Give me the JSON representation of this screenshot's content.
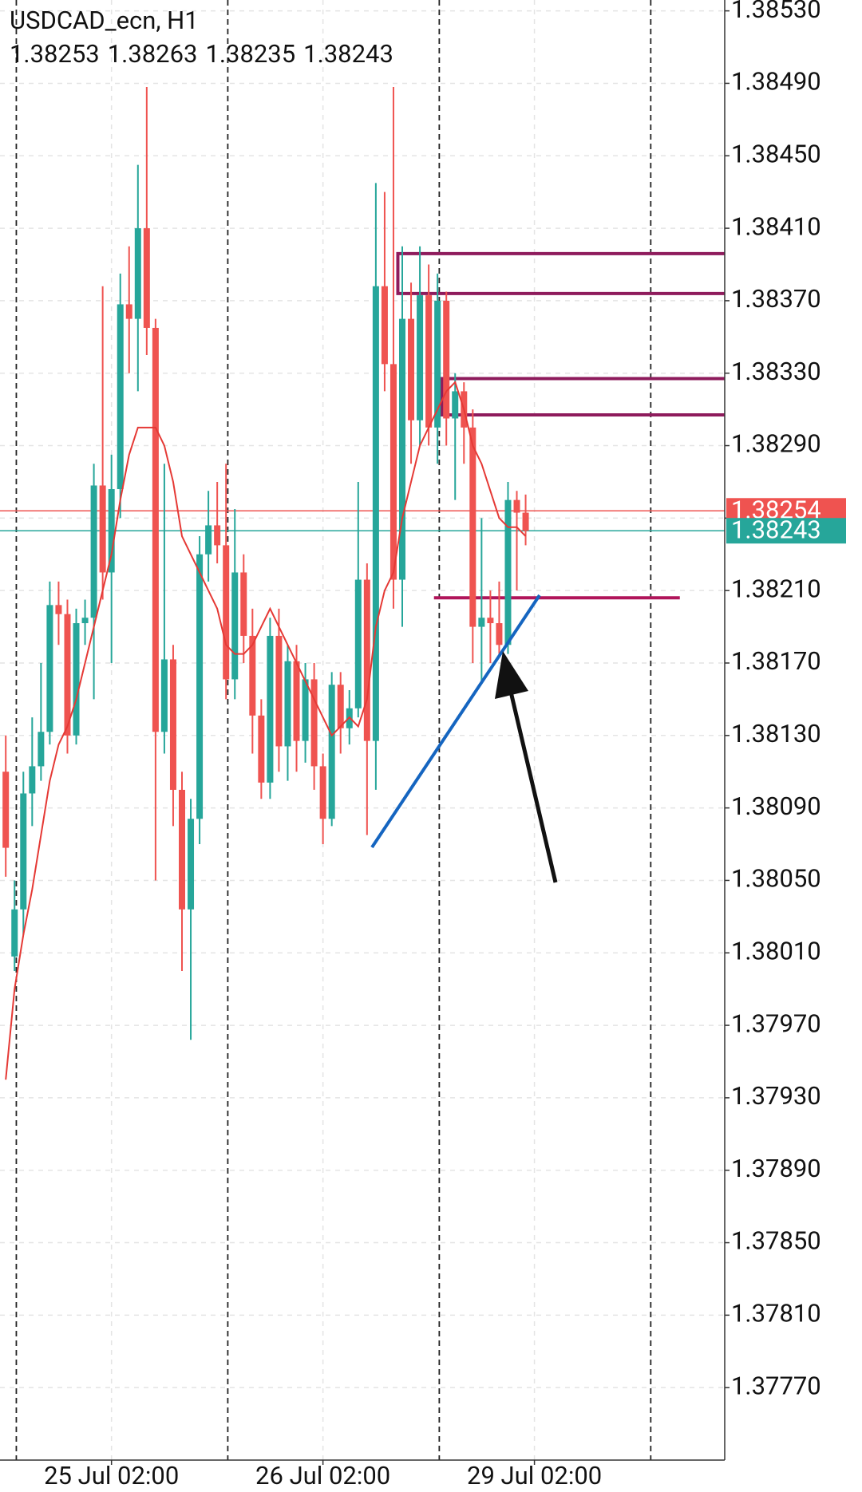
{
  "chart_data": {
    "type": "candlestick",
    "title": "USDCAD_ecn, H1",
    "categories": [
      null,
      null,
      null,
      null,
      null,
      null,
      null,
      null,
      null,
      null,
      null,
      null,
      "25 Jul 02:00",
      null,
      null,
      null,
      null,
      null,
      null,
      null,
      null,
      null,
      null,
      null,
      null,
      null,
      null,
      null,
      null,
      null,
      null,
      null,
      null,
      null,
      null,
      null,
      "26 Jul 02:00",
      null,
      null,
      null,
      null,
      null,
      null,
      null,
      null,
      null,
      null,
      null,
      null,
      null,
      null,
      null,
      null,
      null,
      null,
      null,
      null,
      null,
      null,
      null,
      "29 Jul 02:00"
    ],
    "open": [
      1.3811,
      1.38008,
      1.38034,
      1.38098,
      1.38113,
      1.38132,
      1.38202,
      1.38197,
      1.3813,
      1.38192,
      1.38195,
      1.38268,
      1.3822,
      1.38266,
      1.38368,
      1.3836,
      1.3841,
      1.38355,
      1.38132,
      1.38172,
      1.381,
      1.38034,
      1.38084,
      1.3823,
      1.38246,
      1.38235,
      1.38161,
      1.3822,
      1.38185,
      1.38141,
      1.38104,
      1.38185,
      1.38124,
      1.38171,
      1.38127,
      1.38161,
      1.38113,
      1.38084,
      1.38158,
      1.38134,
      1.38145,
      1.38216,
      1.38127,
      1.38378,
      1.38335,
      1.38216,
      1.3836,
      1.38304,
      1.38373,
      1.383,
      1.3837,
      1.38305,
      1.3832,
      1.383,
      1.3819,
      1.38195,
      1.38192,
      1.3818,
      1.3826,
      1.38253,
      null
    ],
    "high": [
      1.3813,
      1.3805,
      1.3811,
      1.3814,
      1.3817,
      1.38215,
      1.38215,
      1.38205,
      1.382,
      1.38205,
      1.3828,
      1.38378,
      1.38285,
      1.38385,
      1.384,
      1.38445,
      1.38488,
      1.3836,
      1.3828,
      1.3818,
      1.3811,
      1.38095,
      1.3824,
      1.38265,
      1.3827,
      1.3828,
      1.38255,
      1.3823,
      1.382,
      1.3815,
      1.38195,
      1.382,
      1.3818,
      1.3818,
      1.3817,
      1.3817,
      1.3812,
      1.38165,
      1.38165,
      1.38155,
      1.3827,
      1.38225,
      1.38435,
      1.3843,
      1.38488,
      1.384,
      1.3838,
      1.384,
      1.3839,
      1.38385,
      1.38375,
      1.3833,
      1.38325,
      1.3831,
      1.3825,
      1.3821,
      1.38215,
      1.3827,
      1.38265,
      1.38263,
      null
    ],
    "low": [
      1.38052,
      1.38,
      1.3802,
      1.3808,
      1.38105,
      1.38125,
      1.3818,
      1.3812,
      1.38125,
      1.3818,
      1.3815,
      1.38205,
      1.3817,
      1.3825,
      1.3833,
      1.3832,
      1.3834,
      1.3805,
      1.3812,
      1.3808,
      1.38,
      1.37962,
      1.3807,
      1.38215,
      1.38225,
      1.3815,
      1.3815,
      1.3817,
      1.3812,
      1.38095,
      1.38095,
      1.3811,
      1.38105,
      1.3811,
      1.38115,
      1.381,
      1.3807,
      1.3808,
      1.3812,
      1.38125,
      1.3814,
      1.38075,
      1.381,
      1.3832,
      1.382,
      1.3819,
      1.3828,
      1.3829,
      1.3829,
      1.3828,
      1.3829,
      1.3826,
      1.3828,
      1.3817,
      1.3816,
      1.3817,
      1.38175,
      1.38175,
      1.3821,
      1.38235,
      null
    ],
    "close": [
      1.38068,
      1.38034,
      1.38098,
      1.38113,
      1.38132,
      1.38202,
      1.38197,
      1.3813,
      1.38192,
      1.38195,
      1.38268,
      1.3822,
      1.38266,
      1.38368,
      1.3836,
      1.3841,
      1.38355,
      1.38132,
      1.38172,
      1.381,
      1.38034,
      1.38084,
      1.3823,
      1.38246,
      1.38235,
      1.38161,
      1.3822,
      1.38185,
      1.38141,
      1.38104,
      1.38185,
      1.38124,
      1.38171,
      1.38127,
      1.38161,
      1.38113,
      1.38084,
      1.38158,
      1.38134,
      1.38145,
      1.38216,
      1.38127,
      1.38378,
      1.38335,
      1.38216,
      1.3836,
      1.38304,
      1.38373,
      1.383,
      1.3837,
      1.38305,
      1.3832,
      1.383,
      1.3819,
      1.38195,
      1.38192,
      1.3818,
      1.3826,
      1.38253,
      1.38243,
      null
    ],
    "up_color": "#26a69a",
    "down_color": "#ef5350",
    "ma": {
      "color": "#e53935",
      "values": [
        1.3794,
        1.3799,
        1.3802,
        1.38045,
        1.38075,
        1.38105,
        1.38125,
        1.38135,
        1.3815,
        1.3817,
        1.3819,
        1.3821,
        1.3823,
        1.3826,
        1.38285,
        1.383,
        1.383,
        1.383,
        1.3829,
        1.3827,
        1.3824,
        1.3823,
        1.3822,
        1.3821,
        1.382,
        1.3818,
        1.38175,
        1.38175,
        1.3818,
        1.3819,
        1.382,
        1.3819,
        1.3818,
        1.3817,
        1.3816,
        1.3815,
        1.3814,
        1.3813,
        1.38135,
        1.3814,
        1.38135,
        1.3815,
        1.3819,
        1.3821,
        1.3822,
        1.3825,
        1.3827,
        1.3829,
        1.383,
        1.3831,
        1.3832,
        1.38325,
        1.3831,
        1.3829,
        1.3828,
        1.38265,
        1.3825,
        1.38245,
        1.38245,
        1.3824,
        null
      ]
    },
    "price_lines": [
      {
        "value": 1.38254,
        "color": "#ef5350"
      },
      {
        "value": 1.38243,
        "color": "#26a69a"
      }
    ],
    "zones": [
      {
        "top": 1.38396,
        "bottom": 1.38374
      },
      {
        "top": 1.38327,
        "bottom": 1.38307
      }
    ],
    "zone_color": "#8e1b5c",
    "level": {
      "value": 1.38206,
      "color": "#b0155a"
    },
    "ylim": [
      1.3773,
      1.38536
    ],
    "yticks": [
      {
        "value": 1.3853,
        "label": "1.38530"
      },
      {
        "value": 1.3849,
        "label": "1.38490"
      },
      {
        "value": 1.3845,
        "label": "1.38450"
      },
      {
        "value": 1.3841,
        "label": "1.38410"
      },
      {
        "value": 1.3837,
        "label": "1.38370"
      },
      {
        "value": 1.3833,
        "label": "1.38330"
      },
      {
        "value": 1.3829,
        "label": "1.38290"
      },
      {
        "value": 1.3825,
        "label": "1.38250"
      },
      {
        "value": 1.3821,
        "label": "1.38210"
      },
      {
        "value": 1.3817,
        "label": "1.38170"
      },
      {
        "value": 1.3813,
        "label": "1.38130"
      },
      {
        "value": 1.3809,
        "label": "1.38090"
      },
      {
        "value": 1.3805,
        "label": "1.38050"
      },
      {
        "value": 1.3801,
        "label": "1.38010"
      },
      {
        "value": 1.3797,
        "label": "1.37970"
      },
      {
        "value": 1.3793,
        "label": "1.37930"
      },
      {
        "value": 1.3789,
        "label": "1.37890"
      },
      {
        "value": 1.3785,
        "label": "1.37850"
      },
      {
        "value": 1.3781,
        "label": "1.37810"
      },
      {
        "value": 1.3777,
        "label": "1.37770"
      }
    ],
    "grid": true
  }
}
